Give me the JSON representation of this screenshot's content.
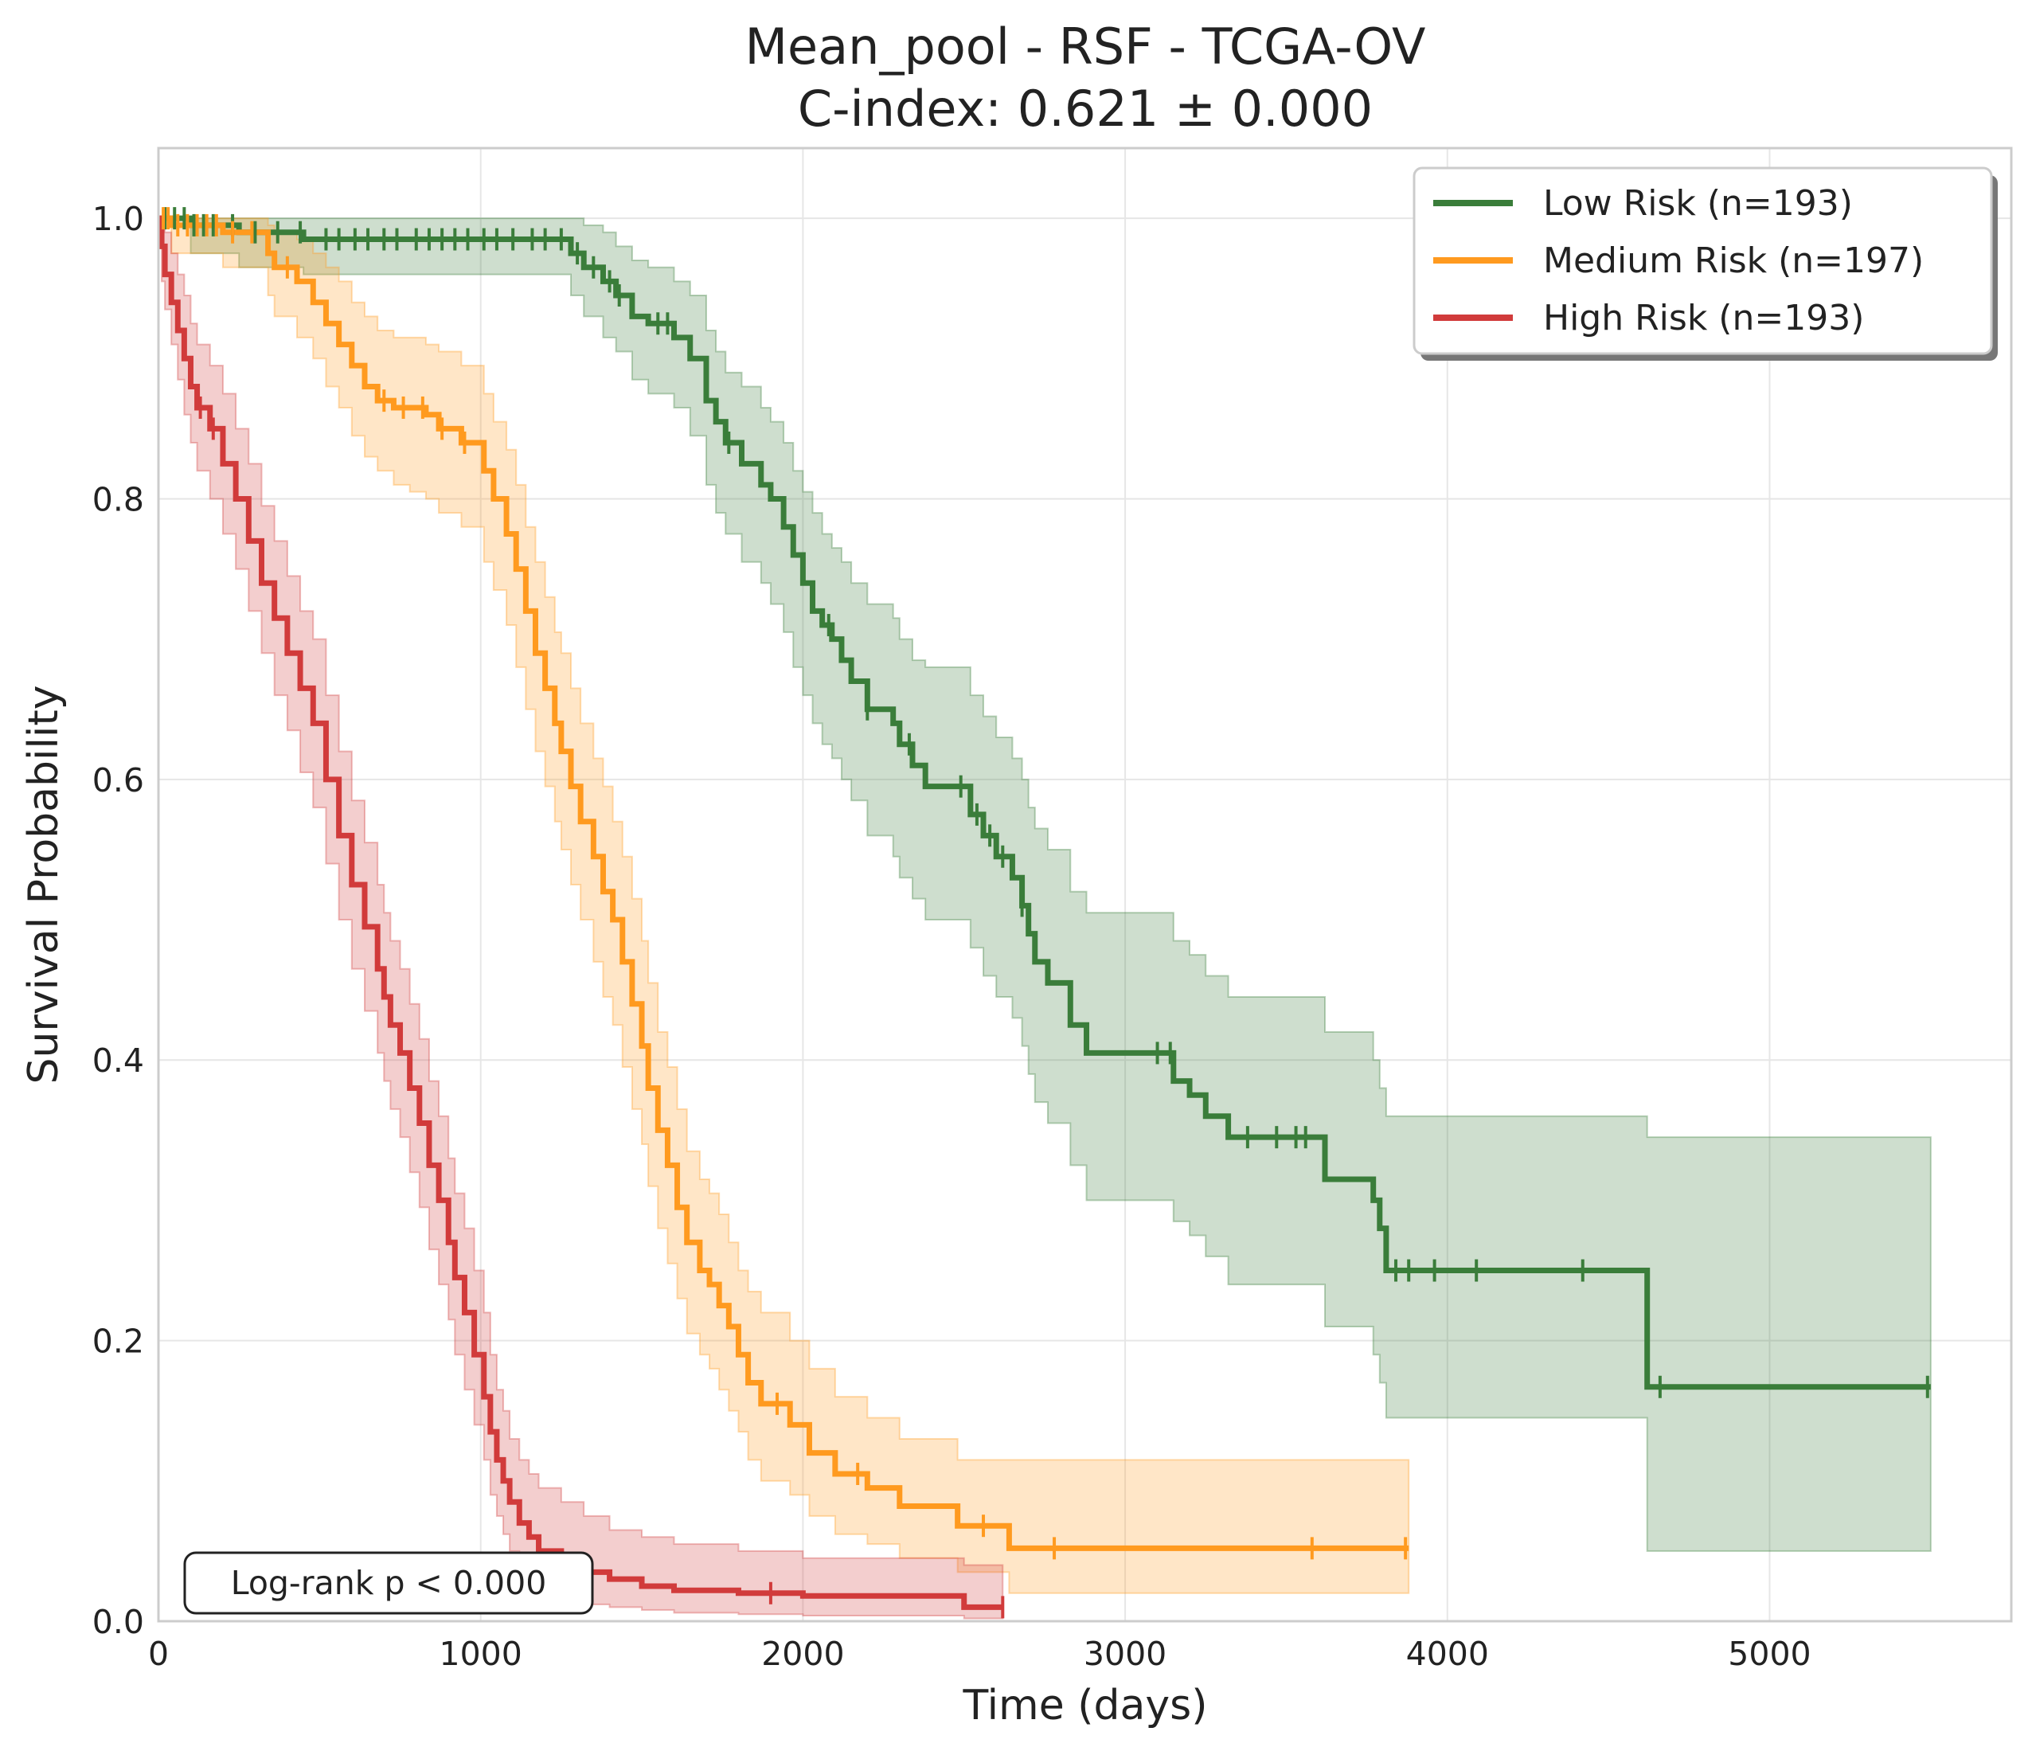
{
  "chart_data": {
    "type": "line",
    "subtype": "kaplan-meier",
    "title": "Mean_pool - RSF - TCGA-OV",
    "subtitle": "C-index: 0.621 ± 0.000",
    "xlabel": "Time (days)",
    "ylabel": "Survival Probability",
    "xlim": [
      0,
      5750
    ],
    "ylim": [
      0,
      1.05
    ],
    "xticks": [
      0,
      1000,
      2000,
      3000,
      4000,
      5000
    ],
    "yticks": [
      0.0,
      0.2,
      0.4,
      0.6,
      0.8,
      1.0
    ],
    "xtick_labels": [
      "0",
      "1000",
      "2000",
      "3000",
      "4000",
      "5000"
    ],
    "ytick_labels": [
      "0.0",
      "0.2",
      "0.4",
      "0.6",
      "0.8",
      "1.0"
    ],
    "grid": true,
    "legend_position": "top-right",
    "annotation": "Log-rank p < 0.000",
    "series": [
      {
        "name": "Low Risk (n=193)",
        "color": "#3a7d3a",
        "times": [
          0,
          100,
          250,
          450,
          1280,
          1320,
          1380,
          1420,
          1470,
          1520,
          1600,
          1650,
          1700,
          1730,
          1760,
          1810,
          1870,
          1900,
          1940,
          1970,
          2000,
          2030,
          2060,
          2090,
          2120,
          2150,
          2200,
          2280,
          2300,
          2340,
          2380,
          2430,
          2520,
          2560,
          2600,
          2650,
          2680,
          2700,
          2720,
          2760,
          2830,
          2880,
          2990,
          3150,
          3200,
          3250,
          3320,
          3620,
          3770,
          3790,
          3810,
          4620,
          5500
        ],
        "surv": [
          1.0,
          0.995,
          0.99,
          0.985,
          0.975,
          0.965,
          0.955,
          0.945,
          0.93,
          0.925,
          0.915,
          0.9,
          0.87,
          0.855,
          0.84,
          0.825,
          0.81,
          0.8,
          0.78,
          0.76,
          0.74,
          0.72,
          0.71,
          0.7,
          0.685,
          0.67,
          0.65,
          0.64,
          0.625,
          0.61,
          0.595,
          0.595,
          0.575,
          0.56,
          0.545,
          0.53,
          0.51,
          0.49,
          0.47,
          0.455,
          0.425,
          0.405,
          0.405,
          0.385,
          0.375,
          0.36,
          0.345,
          0.315,
          0.3,
          0.28,
          0.25,
          0.167,
          0.167
        ],
        "lower": [
          1.0,
          0.975,
          0.965,
          0.96,
          0.945,
          0.93,
          0.915,
          0.905,
          0.885,
          0.875,
          0.865,
          0.845,
          0.81,
          0.79,
          0.775,
          0.755,
          0.74,
          0.725,
          0.705,
          0.68,
          0.66,
          0.64,
          0.625,
          0.615,
          0.6,
          0.585,
          0.56,
          0.545,
          0.53,
          0.515,
          0.5,
          0.5,
          0.48,
          0.46,
          0.445,
          0.43,
          0.41,
          0.39,
          0.37,
          0.355,
          0.325,
          0.3,
          0.3,
          0.285,
          0.275,
          0.26,
          0.24,
          0.21,
          0.19,
          0.17,
          0.145,
          0.05,
          0.05
        ],
        "upper": [
          1.0,
          1.0,
          1.0,
          1.0,
          1.0,
          0.995,
          0.99,
          0.98,
          0.97,
          0.965,
          0.955,
          0.945,
          0.92,
          0.905,
          0.89,
          0.88,
          0.865,
          0.855,
          0.84,
          0.82,
          0.805,
          0.79,
          0.775,
          0.765,
          0.755,
          0.74,
          0.725,
          0.715,
          0.7,
          0.685,
          0.68,
          0.68,
          0.66,
          0.645,
          0.63,
          0.615,
          0.6,
          0.58,
          0.565,
          0.55,
          0.52,
          0.505,
          0.505,
          0.485,
          0.475,
          0.46,
          0.445,
          0.42,
          0.4,
          0.38,
          0.36,
          0.345,
          0.345
        ],
        "censor_times": [
          20,
          50,
          80,
          110,
          140,
          170,
          230,
          300,
          370,
          440,
          520,
          560,
          610,
          650,
          700,
          740,
          800,
          840,
          880,
          920,
          960,
          1010,
          1050,
          1100,
          1160,
          1200,
          1250,
          1300,
          1350,
          1400,
          1430,
          1550,
          1580,
          1770,
          2080,
          2200,
          2330,
          2490,
          2540,
          2580,
          2620,
          2680,
          3100,
          3140,
          3380,
          3470,
          3530,
          3560,
          3840,
          3880,
          3960,
          4090,
          4420,
          4660,
          5490
        ]
      },
      {
        "name": "Medium Risk (n=197)",
        "color": "#ff9a1f",
        "times": [
          0,
          40,
          200,
          340,
          360,
          430,
          480,
          520,
          560,
          600,
          640,
          680,
          730,
          780,
          830,
          870,
          940,
          1010,
          1040,
          1080,
          1110,
          1140,
          1170,
          1200,
          1230,
          1250,
          1280,
          1310,
          1350,
          1380,
          1410,
          1440,
          1470,
          1500,
          1520,
          1550,
          1580,
          1610,
          1640,
          1680,
          1710,
          1740,
          1770,
          1800,
          1830,
          1870,
          1960,
          2020,
          2100,
          2200,
          2300,
          2480,
          2640,
          2700,
          3000,
          3880
        ],
        "surv": [
          1.0,
          0.995,
          0.99,
          0.975,
          0.965,
          0.955,
          0.94,
          0.925,
          0.91,
          0.895,
          0.88,
          0.87,
          0.865,
          0.865,
          0.86,
          0.85,
          0.84,
          0.82,
          0.8,
          0.775,
          0.75,
          0.72,
          0.69,
          0.665,
          0.64,
          0.62,
          0.595,
          0.57,
          0.545,
          0.52,
          0.5,
          0.47,
          0.44,
          0.41,
          0.38,
          0.35,
          0.325,
          0.295,
          0.27,
          0.25,
          0.24,
          0.225,
          0.21,
          0.19,
          0.17,
          0.155,
          0.14,
          0.12,
          0.105,
          0.095,
          0.082,
          0.068,
          0.052,
          0.052,
          0.052,
          0.052
        ],
        "lower": [
          1.0,
          0.975,
          0.965,
          0.945,
          0.93,
          0.915,
          0.9,
          0.88,
          0.865,
          0.845,
          0.83,
          0.82,
          0.81,
          0.805,
          0.8,
          0.79,
          0.78,
          0.755,
          0.735,
          0.71,
          0.68,
          0.65,
          0.62,
          0.595,
          0.57,
          0.55,
          0.525,
          0.5,
          0.47,
          0.445,
          0.425,
          0.395,
          0.365,
          0.34,
          0.31,
          0.28,
          0.255,
          0.23,
          0.205,
          0.19,
          0.18,
          0.165,
          0.15,
          0.135,
          0.115,
          0.1,
          0.09,
          0.075,
          0.062,
          0.055,
          0.045,
          0.035,
          0.02,
          0.02,
          0.02,
          0.02
        ],
        "upper": [
          1.0,
          1.0,
          1.0,
          0.995,
          0.99,
          0.985,
          0.975,
          0.965,
          0.955,
          0.94,
          0.93,
          0.92,
          0.915,
          0.915,
          0.91,
          0.905,
          0.895,
          0.875,
          0.855,
          0.835,
          0.81,
          0.78,
          0.755,
          0.73,
          0.705,
          0.69,
          0.665,
          0.64,
          0.615,
          0.595,
          0.57,
          0.545,
          0.515,
          0.485,
          0.455,
          0.42,
          0.395,
          0.365,
          0.335,
          0.315,
          0.305,
          0.29,
          0.27,
          0.25,
          0.235,
          0.22,
          0.2,
          0.18,
          0.16,
          0.145,
          0.13,
          0.115,
          0.115,
          0.115,
          0.115,
          0.115
        ],
        "censor_times": [
          15,
          30,
          60,
          90,
          120,
          150,
          180,
          230,
          290,
          400,
          700,
          760,
          820,
          880,
          950,
          1920,
          2170,
          2560,
          2780,
          3580,
          3870
        ]
      },
      {
        "name": "High Risk (n=193)",
        "color": "#d13b3b",
        "times": [
          0,
          10,
          20,
          40,
          60,
          80,
          100,
          120,
          160,
          200,
          240,
          280,
          320,
          360,
          400,
          440,
          480,
          520,
          560,
          600,
          640,
          680,
          700,
          720,
          750,
          780,
          810,
          840,
          870,
          900,
          920,
          950,
          980,
          1010,
          1030,
          1050,
          1070,
          1090,
          1120,
          1150,
          1180,
          1250,
          1320,
          1400,
          1500,
          1600,
          1800,
          2000,
          2500,
          2620
        ],
        "surv": [
          1.0,
          0.98,
          0.96,
          0.94,
          0.92,
          0.9,
          0.88,
          0.865,
          0.85,
          0.825,
          0.8,
          0.77,
          0.74,
          0.715,
          0.69,
          0.665,
          0.64,
          0.6,
          0.56,
          0.525,
          0.495,
          0.465,
          0.445,
          0.425,
          0.405,
          0.38,
          0.355,
          0.325,
          0.3,
          0.27,
          0.245,
          0.22,
          0.19,
          0.16,
          0.135,
          0.115,
          0.1,
          0.085,
          0.07,
          0.06,
          0.05,
          0.04,
          0.035,
          0.03,
          0.025,
          0.022,
          0.02,
          0.018,
          0.01,
          0.01
        ],
        "lower": [
          1.0,
          0.955,
          0.935,
          0.91,
          0.885,
          0.86,
          0.84,
          0.82,
          0.8,
          0.775,
          0.75,
          0.72,
          0.69,
          0.66,
          0.635,
          0.605,
          0.58,
          0.54,
          0.5,
          0.465,
          0.435,
          0.405,
          0.385,
          0.365,
          0.345,
          0.32,
          0.295,
          0.265,
          0.24,
          0.215,
          0.19,
          0.165,
          0.14,
          0.115,
          0.09,
          0.075,
          0.062,
          0.05,
          0.04,
          0.03,
          0.022,
          0.015,
          0.012,
          0.01,
          0.008,
          0.006,
          0.005,
          0.004,
          0.002,
          0.002
        ],
        "upper": [
          1.0,
          1.0,
          0.99,
          0.975,
          0.96,
          0.945,
          0.925,
          0.91,
          0.895,
          0.875,
          0.85,
          0.825,
          0.795,
          0.77,
          0.745,
          0.72,
          0.7,
          0.66,
          0.62,
          0.585,
          0.555,
          0.525,
          0.505,
          0.485,
          0.465,
          0.44,
          0.415,
          0.385,
          0.36,
          0.33,
          0.305,
          0.28,
          0.25,
          0.22,
          0.19,
          0.165,
          0.15,
          0.13,
          0.115,
          0.105,
          0.095,
          0.085,
          0.075,
          0.065,
          0.06,
          0.055,
          0.05,
          0.045,
          0.04,
          0.04
        ],
        "censor_times": [
          130,
          170,
          1900,
          2620
        ]
      }
    ]
  }
}
